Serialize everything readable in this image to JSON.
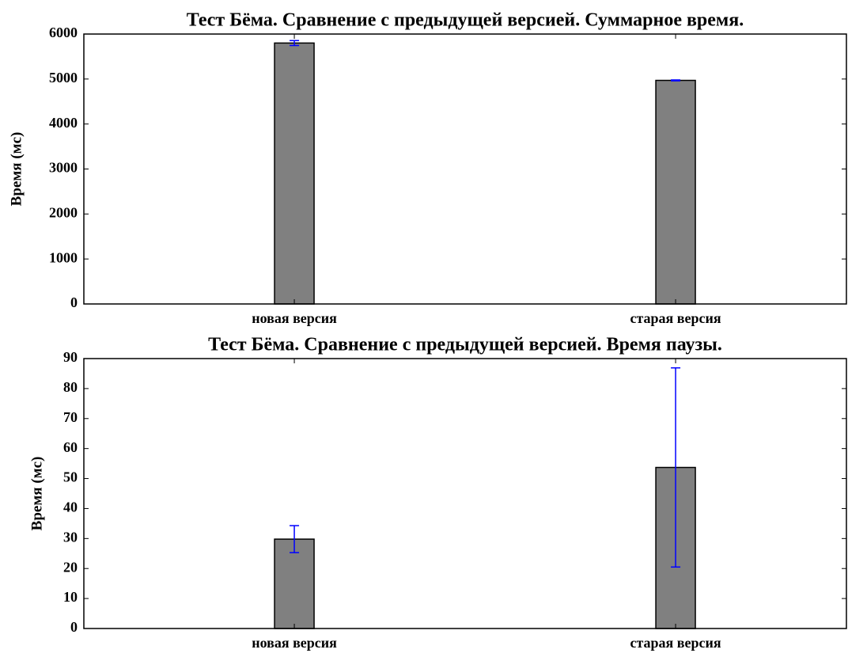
{
  "chart_data": [
    {
      "type": "bar",
      "title": "Тест Бёма. Сравнение с предыдущей версией. Суммарное время.",
      "y_label": "Время (мс)",
      "categories": [
        "новая версия",
        "старая версия"
      ],
      "values": [
        5800,
        4970
      ],
      "errors": [
        55,
        10
      ],
      "color": "#808080",
      "error_color": "#0000ff",
      "ylim": [
        0,
        6000
      ],
      "yticks": [
        0,
        1000,
        2000,
        3000,
        4000,
        5000,
        6000
      ]
    },
    {
      "type": "bar",
      "title": "Тест Бёма. Сравнение с предыдущей версией. Время паузы.",
      "y_label": "Время (мс)",
      "categories": [
        "новая версия",
        "старая версия"
      ],
      "values": [
        29.8,
        53.7
      ],
      "errors": [
        4.5,
        33.2
      ],
      "color": "#808080",
      "error_color": "#0000ff",
      "ylim": [
        0,
        90
      ],
      "yticks": [
        0,
        10,
        20,
        30,
        40,
        50,
        60,
        70,
        80,
        90
      ]
    }
  ]
}
